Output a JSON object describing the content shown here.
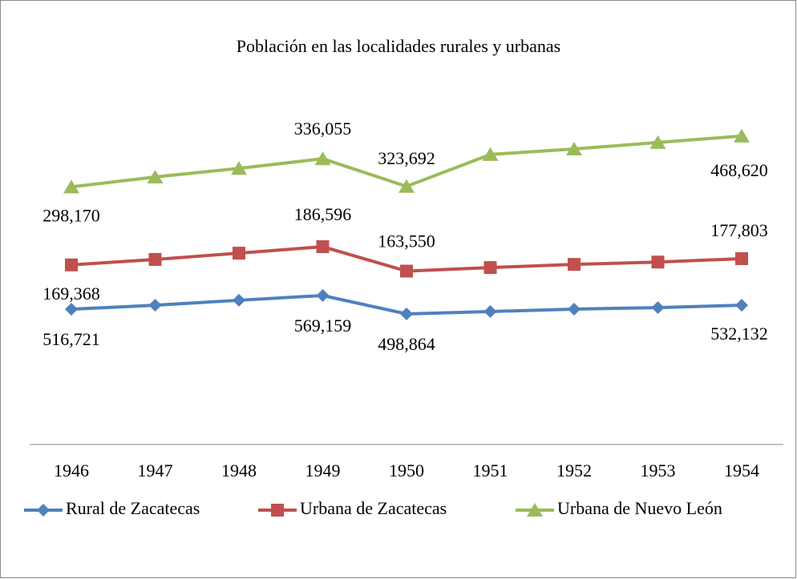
{
  "chart_data": {
    "type": "line",
    "stacked": true,
    "title": "Población en las localidades rurales y urbanas",
    "categories": [
      "1946",
      "1947",
      "1948",
      "1949",
      "1950",
      "1951",
      "1952",
      "1953",
      "1954"
    ],
    "ylim": [
      0,
      1300000
    ],
    "legend": "bottom",
    "series": [
      {
        "name": "Rural de Zacatecas",
        "color": "#4f81bd",
        "marker": "diamond",
        "values": [
          516721,
          532000,
          551000,
          569159,
          498864,
          508000,
          517000,
          523000,
          532132
        ],
        "value_labels": [
          "516,721",
          null,
          null,
          "569,159",
          "498,864",
          null,
          null,
          null,
          "532,132"
        ]
      },
      {
        "name": "Urbana de Zacatecas",
        "color": "#c0504d",
        "marker": "square",
        "values": [
          169368,
          175000,
          180000,
          186596,
          163550,
          168000,
          171000,
          174000,
          177803
        ],
        "value_labels": [
          "169,368",
          null,
          null,
          "186,596",
          "163,550",
          null,
          null,
          null,
          "177,803"
        ]
      },
      {
        "name": "Urbana de Nuevo León",
        "color": "#9bbb59",
        "marker": "triangle",
        "values": [
          298170,
          315000,
          324000,
          336055,
          323692,
          432000,
          441000,
          457000,
          468620
        ],
        "value_labels": [
          "298,170",
          null,
          null,
          "336,055",
          "323,692",
          null,
          null,
          null,
          "468,620"
        ]
      }
    ]
  }
}
